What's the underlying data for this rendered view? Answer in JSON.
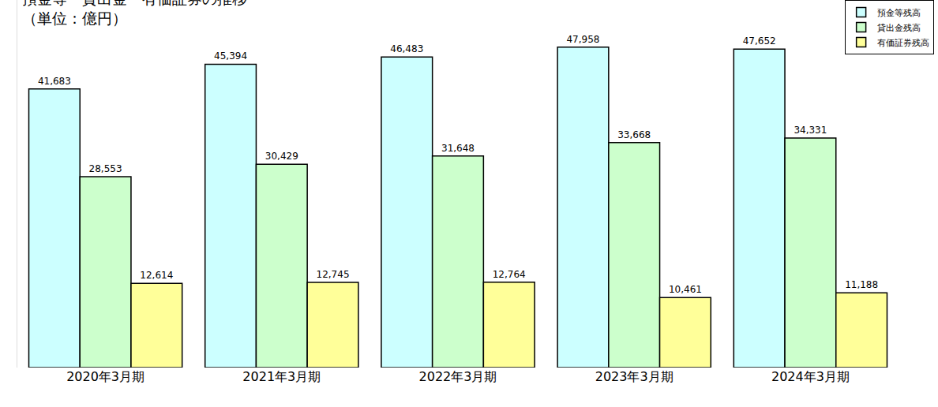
{
  "chart_data": {
    "type": "bar",
    "title": "預金等・貸出金・有価証券の推移",
    "subtitle": "（単位：億円）",
    "categories": [
      "2020年3月期",
      "2021年3月期",
      "2022年3月期",
      "2023年3月期",
      "2024年3月期"
    ],
    "series": [
      {
        "name": "預金等残高",
        "color": "#ccffff",
        "values": [
          41683,
          45394,
          46483,
          47958,
          47652
        ],
        "value_labels": [
          "41,683",
          "45,394",
          "46,483",
          "47,958",
          "47,652"
        ]
      },
      {
        "name": "貸出金残高",
        "color": "#ccffcc",
        "values": [
          28553,
          30429,
          31648,
          33668,
          34331
        ],
        "value_labels": [
          "28,553",
          "30,429",
          "31,648",
          "33,668",
          "34,331"
        ]
      },
      {
        "name": "有価証券残高",
        "color": "#ffff99",
        "values": [
          12614,
          12745,
          12764,
          10461,
          11188
        ],
        "value_labels": [
          "12,614",
          "12,745",
          "12,764",
          "10,461",
          "11,188"
        ]
      }
    ],
    "ylim": [
      0,
      55000
    ],
    "tick_labels": "x",
    "grid": false,
    "legend": "upper right",
    "data_labels": true
  }
}
